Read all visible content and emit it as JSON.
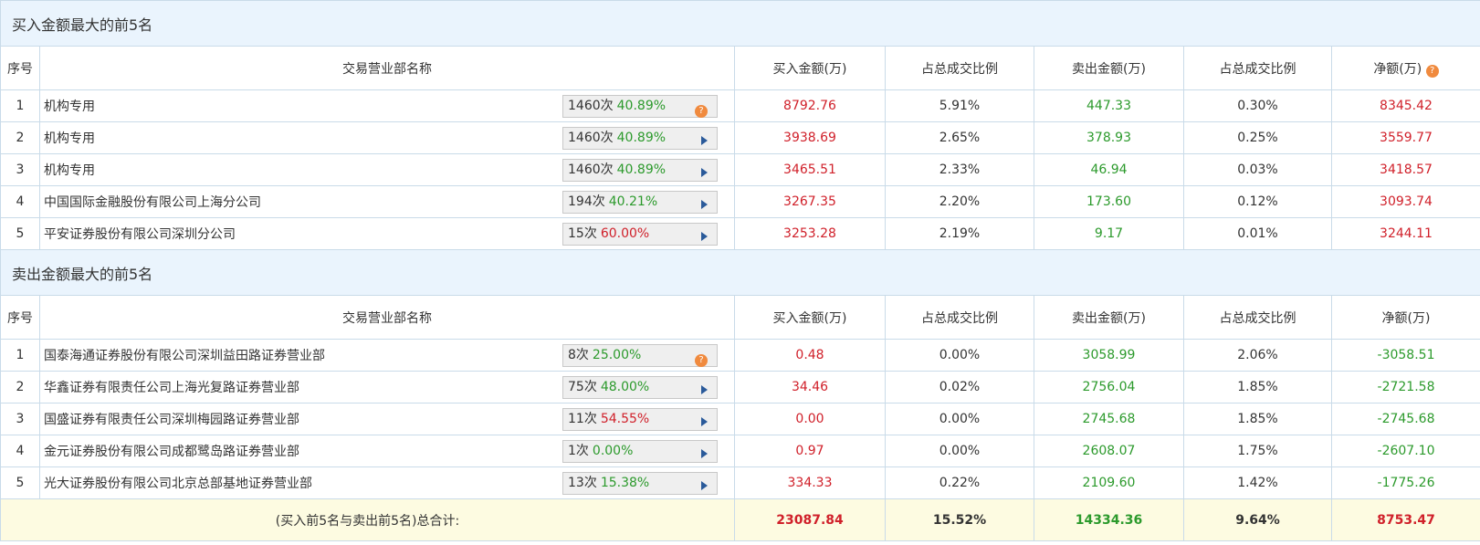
{
  "headers": {
    "seq": "序号",
    "name": "交易营业部名称",
    "buy": "买入金额(万)",
    "buy_pct": "占总成交比例",
    "sell": "卖出金额(万)",
    "sell_pct": "占总成交比例",
    "net": "净额(万)"
  },
  "buy_section": {
    "title": "买入金额最大的前5名",
    "rows": [
      {
        "seq": "1",
        "name": "机构专用",
        "count": "1460次",
        "rate": "40.89%",
        "rate_color": "green",
        "icon": "question-icon",
        "buy": "8792.76",
        "buy_pct": "5.91%",
        "sell": "447.33",
        "sell_pct": "0.30%",
        "net": "8345.42"
      },
      {
        "seq": "2",
        "name": "机构专用",
        "count": "1460次",
        "rate": "40.89%",
        "rate_color": "green",
        "icon": "play-icon",
        "buy": "3938.69",
        "buy_pct": "2.65%",
        "sell": "378.93",
        "sell_pct": "0.25%",
        "net": "3559.77"
      },
      {
        "seq": "3",
        "name": "机构专用",
        "count": "1460次",
        "rate": "40.89%",
        "rate_color": "green",
        "icon": "play-icon",
        "buy": "3465.51",
        "buy_pct": "2.33%",
        "sell": "46.94",
        "sell_pct": "0.03%",
        "net": "3418.57"
      },
      {
        "seq": "4",
        "name": "中国国际金融股份有限公司上海分公司",
        "count": "194次",
        "rate": "40.21%",
        "rate_color": "green",
        "icon": "play-icon",
        "buy": "3267.35",
        "buy_pct": "2.20%",
        "sell": "173.60",
        "sell_pct": "0.12%",
        "net": "3093.74"
      },
      {
        "seq": "5",
        "name": "平安证券股份有限公司深圳分公司",
        "count": "15次",
        "rate": "60.00%",
        "rate_color": "red",
        "icon": "play-icon",
        "buy": "3253.28",
        "buy_pct": "2.19%",
        "sell": "9.17",
        "sell_pct": "0.01%",
        "net": "3244.11"
      }
    ]
  },
  "sell_section": {
    "title": "卖出金额最大的前5名",
    "rows": [
      {
        "seq": "1",
        "name": "国泰海通证券股份有限公司深圳益田路证券营业部",
        "count": "8次",
        "rate": "25.00%",
        "rate_color": "green",
        "icon": "question-icon",
        "buy": "0.48",
        "buy_pct": "0.00%",
        "sell": "3058.99",
        "sell_pct": "2.06%",
        "net": "-3058.51"
      },
      {
        "seq": "2",
        "name": "华鑫证券有限责任公司上海光复路证券营业部",
        "count": "75次",
        "rate": "48.00%",
        "rate_color": "green",
        "icon": "play-icon",
        "buy": "34.46",
        "buy_pct": "0.02%",
        "sell": "2756.04",
        "sell_pct": "1.85%",
        "net": "-2721.58"
      },
      {
        "seq": "3",
        "name": "国盛证券有限责任公司深圳梅园路证券营业部",
        "count": "11次",
        "rate": "54.55%",
        "rate_color": "red",
        "icon": "play-icon",
        "buy": "0.00",
        "buy_pct": "0.00%",
        "sell": "2745.68",
        "sell_pct": "1.85%",
        "net": "-2745.68"
      },
      {
        "seq": "4",
        "name": "金元证券股份有限公司成都鹭岛路证券营业部",
        "count": "1次",
        "rate": "0.00%",
        "rate_color": "green",
        "icon": "play-icon",
        "buy": "0.97",
        "buy_pct": "0.00%",
        "sell": "2608.07",
        "sell_pct": "1.75%",
        "net": "-2607.10"
      },
      {
        "seq": "5",
        "name": "光大证券股份有限公司北京总部基地证券营业部",
        "count": "13次",
        "rate": "15.38%",
        "rate_color": "green",
        "icon": "play-icon",
        "buy": "334.33",
        "buy_pct": "0.22%",
        "sell": "2109.60",
        "sell_pct": "1.42%",
        "net": "-1775.26"
      }
    ]
  },
  "total": {
    "label": "(买入前5名与卖出前5名)总合计:",
    "buy": "23087.84",
    "buy_pct": "15.52%",
    "sell": "14334.36",
    "sell_pct": "9.64%",
    "net": "8753.47"
  },
  "colors": {
    "buy": "#d0202a",
    "sell": "#2c9a2c",
    "title_bg": "#eaf4fd",
    "total_bg": "#fdfbe1"
  }
}
